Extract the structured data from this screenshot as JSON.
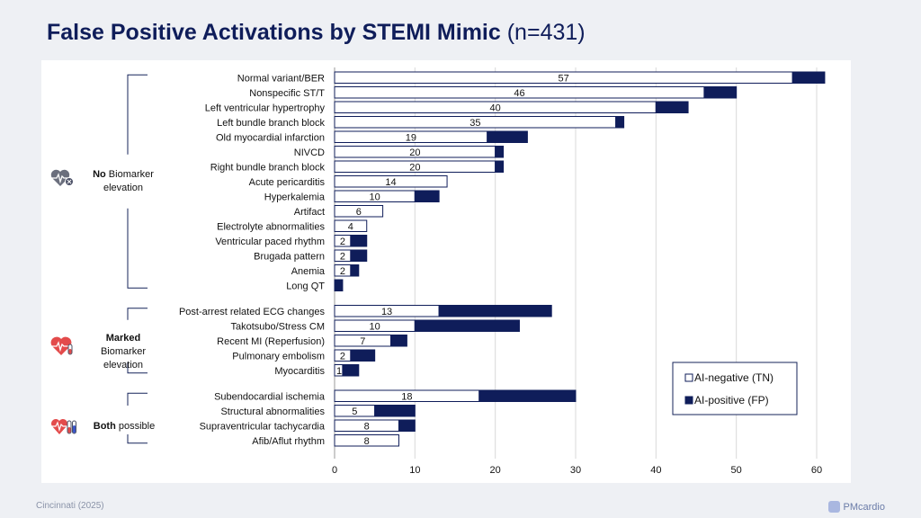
{
  "title": {
    "main": "False Positive Activations by STEMI Mimic",
    "suffix": "(n=431)"
  },
  "footer": {
    "source": "Cincinnati (2025)",
    "brand": "PMcardio"
  },
  "groups": [
    {
      "bold": "No",
      "rest": " Biomarker elevation",
      "icon": "heart-monitor-icon"
    },
    {
      "bold": "Marked",
      "rest": " Biomarker elevation",
      "icon": "heart-pulse-test-tube-icon"
    },
    {
      "bold": "Both",
      "rest": " possible",
      "icon": "heart-test-tubes-icon"
    }
  ],
  "colors": {
    "positive": "#0f1d5a",
    "negative": "#ffffff",
    "stroke": "#0f1d5a",
    "grid": "#d9d9d9"
  },
  "chart_data": {
    "type": "bar",
    "orientation": "horizontal",
    "stacked": true,
    "title": "False Positive Activations by STEMI Mimic (n=431)",
    "xlim": [
      0,
      60
    ],
    "xticks": [
      0,
      10,
      20,
      30,
      40,
      50,
      60
    ],
    "legend": {
      "placement": "bottom-right",
      "entries": [
        "AI-negative (TN)",
        "AI-positive (FP)"
      ]
    },
    "series": [
      {
        "name": "AI-negative (TN)",
        "role": "negative"
      },
      {
        "name": "AI-positive (FP)",
        "role": "positive"
      }
    ],
    "categories": [
      {
        "label": "Normal variant/BER",
        "tn": 57,
        "fp": 4,
        "group": 0
      },
      {
        "label": "Nonspecific ST/T",
        "tn": 46,
        "fp": 4,
        "group": 0
      },
      {
        "label": "Left ventricular hypertrophy",
        "tn": 40,
        "fp": 4,
        "group": 0
      },
      {
        "label": "Left bundle branch block",
        "tn": 35,
        "fp": 1,
        "group": 0
      },
      {
        "label": "Old myocardial infarction",
        "tn": 19,
        "fp": 5,
        "group": 0
      },
      {
        "label": "NIVCD",
        "tn": 20,
        "fp": 1,
        "group": 0
      },
      {
        "label": "Right bundle branch block",
        "tn": 20,
        "fp": 1,
        "group": 0
      },
      {
        "label": "Acute pericarditis",
        "tn": 14,
        "fp": 0,
        "group": 0
      },
      {
        "label": "Hyperkalemia",
        "tn": 10,
        "fp": 3,
        "group": 0
      },
      {
        "label": "Artifact",
        "tn": 6,
        "fp": 0,
        "group": 0
      },
      {
        "label": "Electrolyte abnormalities",
        "tn": 4,
        "fp": 0,
        "group": 0
      },
      {
        "label": "Ventricular paced rhythm",
        "tn": 2,
        "fp": 2,
        "group": 0
      },
      {
        "label": "Brugada pattern",
        "tn": 2,
        "fp": 2,
        "group": 0
      },
      {
        "label": "Anemia",
        "tn": 2,
        "fp": 1,
        "group": 0
      },
      {
        "label": "Long QT",
        "tn": 0,
        "fp": 1,
        "group": 0
      },
      {
        "label": "Post-arrest related ECG changes",
        "tn": 13,
        "fp": 14,
        "group": 1
      },
      {
        "label": "Takotsubo/Stress CM",
        "tn": 10,
        "fp": 13,
        "group": 1
      },
      {
        "label": "Recent MI (Reperfusion)",
        "tn": 7,
        "fp": 2,
        "group": 1
      },
      {
        "label": "Pulmonary embolism",
        "tn": 2,
        "fp": 3,
        "group": 1
      },
      {
        "label": "Myocarditis",
        "tn": 1,
        "fp": 2,
        "group": 1
      },
      {
        "label": "Subendocardial ischemia",
        "tn": 18,
        "fp": 12,
        "group": 2
      },
      {
        "label": "Structural abnormalities",
        "tn": 5,
        "fp": 5,
        "group": 2
      },
      {
        "label": "Supraventricular tachycardia",
        "tn": 8,
        "fp": 2,
        "group": 2
      },
      {
        "label": "Afib/Aflut rhythm",
        "tn": 8,
        "fp": 0,
        "group": 2
      }
    ]
  }
}
